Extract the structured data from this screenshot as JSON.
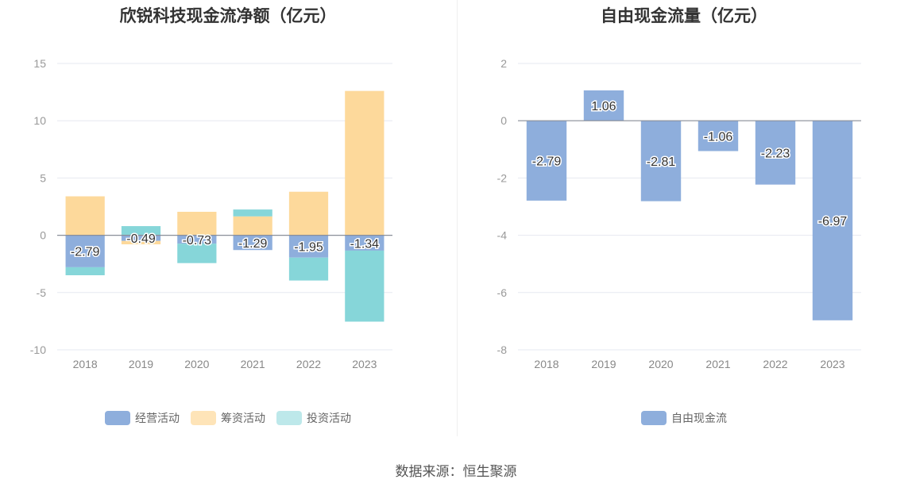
{
  "source": "数据来源：恒生聚源",
  "chart_data": [
    {
      "type": "bar",
      "stacked": true,
      "title": "欣锐科技现金流净额（亿元）",
      "categories": [
        "2018",
        "2019",
        "2020",
        "2021",
        "2022",
        "2023"
      ],
      "ylim": [
        -10,
        15
      ],
      "yticks": [
        15,
        10,
        5,
        0,
        -5,
        -10
      ],
      "grid": true,
      "legend_position": "bottom",
      "series": [
        {
          "name": "经营活动",
          "color": "#8eaedc",
          "values": [
            -2.79,
            -0.49,
            -0.73,
            -1.29,
            -1.95,
            -1.34
          ],
          "labels": [
            "-2.79",
            "-0.49",
            "-0.73",
            "-1.29",
            "-1.95",
            "-1.34"
          ]
        },
        {
          "name": "筹资活动",
          "color": "#fdd99b",
          "values": [
            3.4,
            -0.3,
            2.05,
            1.65,
            3.8,
            12.6
          ]
        },
        {
          "name": "投资活动",
          "color": "#86d6d9",
          "values": [
            -0.7,
            0.8,
            -1.7,
            0.6,
            -2.0,
            -6.2
          ]
        }
      ],
      "legend_colors": [
        "#8eaedc",
        "#fee4b8",
        "#bde8ea"
      ]
    },
    {
      "type": "bar",
      "title": "自由现金流量（亿元）",
      "categories": [
        "2018",
        "2019",
        "2020",
        "2021",
        "2022",
        "2023"
      ],
      "ylim": [
        -8,
        2
      ],
      "yticks": [
        2,
        0,
        -2,
        -4,
        -6,
        -8
      ],
      "grid": true,
      "legend_position": "bottom",
      "series": [
        {
          "name": "自由现金流",
          "color": "#8eaedc",
          "values": [
            -2.79,
            1.06,
            -2.81,
            -1.06,
            -2.23,
            -6.97
          ],
          "labels": [
            "-2.79",
            "1.06",
            "-2.81",
            "-1.06",
            "-2.23",
            "-6.97"
          ]
        }
      ],
      "legend_colors": [
        "#8eaedc"
      ]
    }
  ]
}
